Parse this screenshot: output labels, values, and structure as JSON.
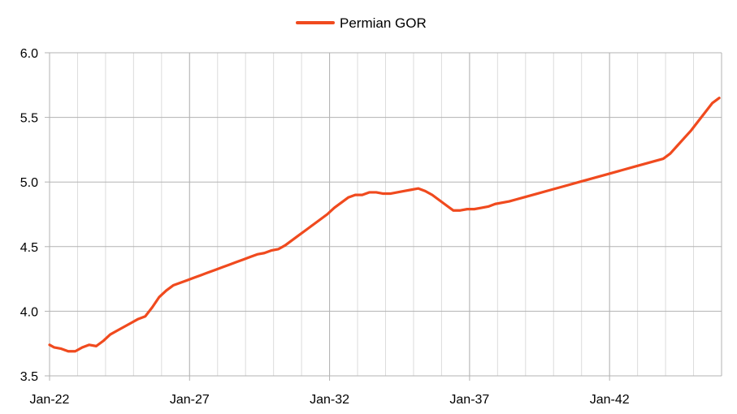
{
  "chart_data": {
    "type": "line",
    "title": "",
    "xlabel": "",
    "ylabel": "",
    "legend": {
      "placement": "top-center"
    },
    "grid": true,
    "x_tick_labels": [
      "Jan-22",
      "Jan-27",
      "Jan-32",
      "Jan-37",
      "Jan-42"
    ],
    "y_tick_labels": [
      "3.5",
      "4.0",
      "4.5",
      "5.0",
      "5.5",
      "6.0"
    ],
    "xlim": [
      "2022-01",
      "2046-01"
    ],
    "ylim": [
      3.5,
      6.0
    ],
    "series": [
      {
        "name": "Permian GOR",
        "color": "#f04a1e",
        "x": [
          "2022-01",
          "2022-03",
          "2022-06",
          "2022-09",
          "2022-12",
          "2023-03",
          "2023-06",
          "2023-09",
          "2023-12",
          "2024-03",
          "2024-06",
          "2024-09",
          "2024-12",
          "2025-03",
          "2025-06",
          "2025-09",
          "2025-12",
          "2026-03",
          "2026-06",
          "2026-09",
          "2026-12",
          "2027-03",
          "2027-06",
          "2027-09",
          "2027-12",
          "2028-03",
          "2028-06",
          "2028-09",
          "2028-12",
          "2029-03",
          "2029-06",
          "2029-09",
          "2029-12",
          "2030-03",
          "2030-06",
          "2030-09",
          "2030-12",
          "2031-03",
          "2031-06",
          "2031-09",
          "2031-12",
          "2032-03",
          "2032-06",
          "2032-09",
          "2032-12",
          "2033-03",
          "2033-06",
          "2033-09",
          "2033-12",
          "2034-03",
          "2034-06",
          "2034-09",
          "2034-12",
          "2035-03",
          "2035-06",
          "2035-09",
          "2035-12",
          "2036-03",
          "2036-06",
          "2036-09",
          "2036-12",
          "2037-03",
          "2037-06",
          "2037-09",
          "2037-12",
          "2038-06",
          "2038-12",
          "2039-06",
          "2039-12",
          "2040-06",
          "2040-12",
          "2041-06",
          "2041-12",
          "2042-06",
          "2042-12",
          "2043-06",
          "2043-12",
          "2044-03",
          "2044-06",
          "2044-09",
          "2044-12",
          "2045-03",
          "2045-06",
          "2045-09",
          "2045-12"
        ],
        "values": [
          3.74,
          3.72,
          3.71,
          3.69,
          3.69,
          3.72,
          3.74,
          3.73,
          3.77,
          3.82,
          3.85,
          3.88,
          3.91,
          3.94,
          3.96,
          4.03,
          4.11,
          4.16,
          4.2,
          4.22,
          4.24,
          4.26,
          4.28,
          4.3,
          4.32,
          4.34,
          4.36,
          4.38,
          4.4,
          4.42,
          4.44,
          4.45,
          4.47,
          4.48,
          4.51,
          4.55,
          4.59,
          4.63,
          4.67,
          4.71,
          4.75,
          4.8,
          4.84,
          4.88,
          4.9,
          4.9,
          4.92,
          4.92,
          4.91,
          4.91,
          4.92,
          4.93,
          4.94,
          4.95,
          4.93,
          4.9,
          4.86,
          4.82,
          4.78,
          4.78,
          4.79,
          4.79,
          4.8,
          4.81,
          4.83,
          4.85,
          4.88,
          4.91,
          4.94,
          4.97,
          5.0,
          5.03,
          5.06,
          5.09,
          5.12,
          5.15,
          5.18,
          5.22,
          5.28,
          5.34,
          5.4,
          5.47,
          5.54,
          5.61,
          5.65
        ]
      }
    ]
  }
}
